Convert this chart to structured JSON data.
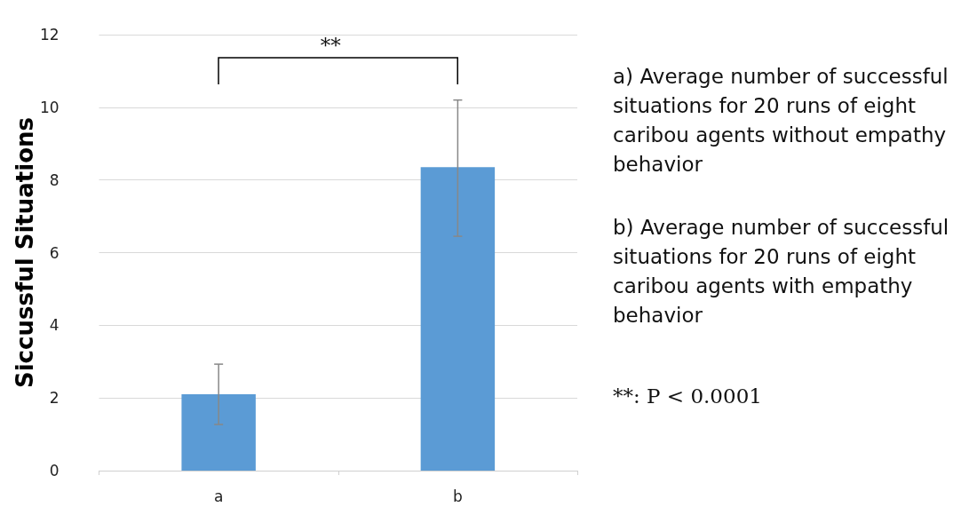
{
  "chart_data": {
    "type": "bar",
    "ylabel": "Siccussful Situations",
    "categories": [
      "a",
      "b"
    ],
    "values": [
      2.1,
      8.35
    ],
    "color": "#5b9bd5",
    "errors": [
      [
        1.27,
        2.93
      ],
      [
        6.45,
        10.2
      ]
    ],
    "ylim": [
      0,
      12
    ],
    "yticks": [
      0,
      2,
      4,
      6,
      8,
      10,
      12
    ],
    "grid": "y",
    "annotations": [
      "**",
      "a) Average number of successful situations for 20 runs of eight caribou agents without empathy behavior",
      "b) Average number of successful situations for 20 runs of eight caribou agents with empathy behavior",
      "**: P < 0.0001"
    ]
  }
}
